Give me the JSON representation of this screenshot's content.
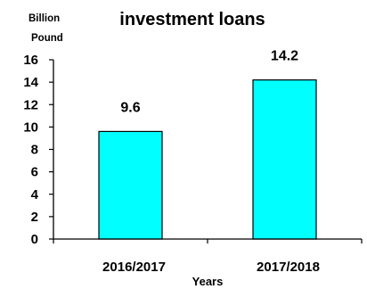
{
  "chart_data": {
    "type": "bar",
    "title": "investment loans",
    "ylabel_lines": [
      "Billion",
      "Pound"
    ],
    "xlabel": "Years",
    "categories": [
      "2016/2017",
      "2017/2018"
    ],
    "values": [
      9.6,
      14.2
    ],
    "data_labels": [
      "9.6",
      "14.2"
    ],
    "ylim": [
      0,
      16
    ],
    "yticks": [
      0,
      2,
      4,
      6,
      8,
      10,
      12,
      14,
      16
    ],
    "grid": false,
    "legend": "none",
    "bar_color": "#00FFFF",
    "bar_edge_color": "#000000"
  }
}
